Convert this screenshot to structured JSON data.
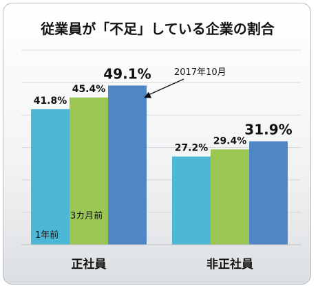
{
  "chart_data": {
    "type": "bar",
    "title": "従業員が「不足」している企業の割合",
    "categories": [
      "正社員",
      "非正社員"
    ],
    "series": [
      {
        "name": "1年前",
        "color": "#4db8d6",
        "values": [
          41.8,
          27.2
        ],
        "labels": [
          "41.8%",
          "27.2%"
        ]
      },
      {
        "name": "3カ月前",
        "color": "#9bc653",
        "values": [
          45.4,
          29.4
        ],
        "labels": [
          "45.4%",
          "29.4%"
        ]
      },
      {
        "name": "2017年10月",
        "color": "#4f86c6",
        "values": [
          49.1,
          31.9
        ],
        "labels": [
          "49.1%",
          "31.9%"
        ]
      }
    ],
    "ylim": [
      0,
      60
    ],
    "grid": true,
    "xlabel": "",
    "ylabel": ""
  }
}
